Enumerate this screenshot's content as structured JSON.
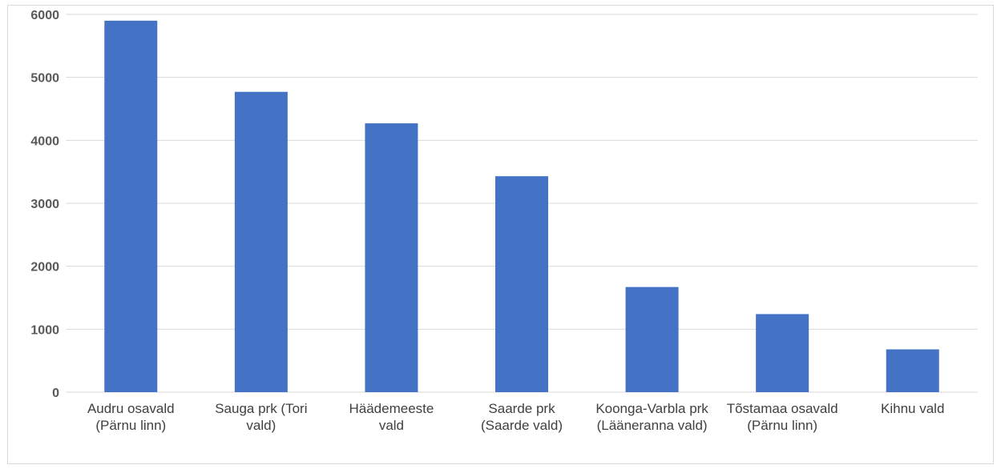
{
  "chart_data": {
    "type": "bar",
    "title": "",
    "xlabel": "",
    "ylabel": "",
    "categories": [
      [
        "Audru osavald",
        "(Pärnu linn)"
      ],
      [
        "Sauga prk (Tori",
        "vald)"
      ],
      [
        "Häädemeeste",
        "vald"
      ],
      [
        "Saarde prk",
        "(Saarde vald)"
      ],
      [
        "Koonga-Varbla prk",
        "(Lääneranna vald)"
      ],
      [
        "Tõstamaa osavald",
        "(Pärnu linn)"
      ],
      [
        "Kihnu vald"
      ]
    ],
    "values": [
      5900,
      4770,
      4270,
      3430,
      1670,
      1240,
      680
    ],
    "ylim": [
      0,
      6000
    ],
    "yticks": [
      "0",
      "1000",
      "2000",
      "3000",
      "4000",
      "5000",
      "6000"
    ],
    "grid": true,
    "legend": "none",
    "colors": {
      "bar": "#4472C4",
      "grid": "#D9D9D9",
      "border": "#D9D9D9"
    }
  }
}
